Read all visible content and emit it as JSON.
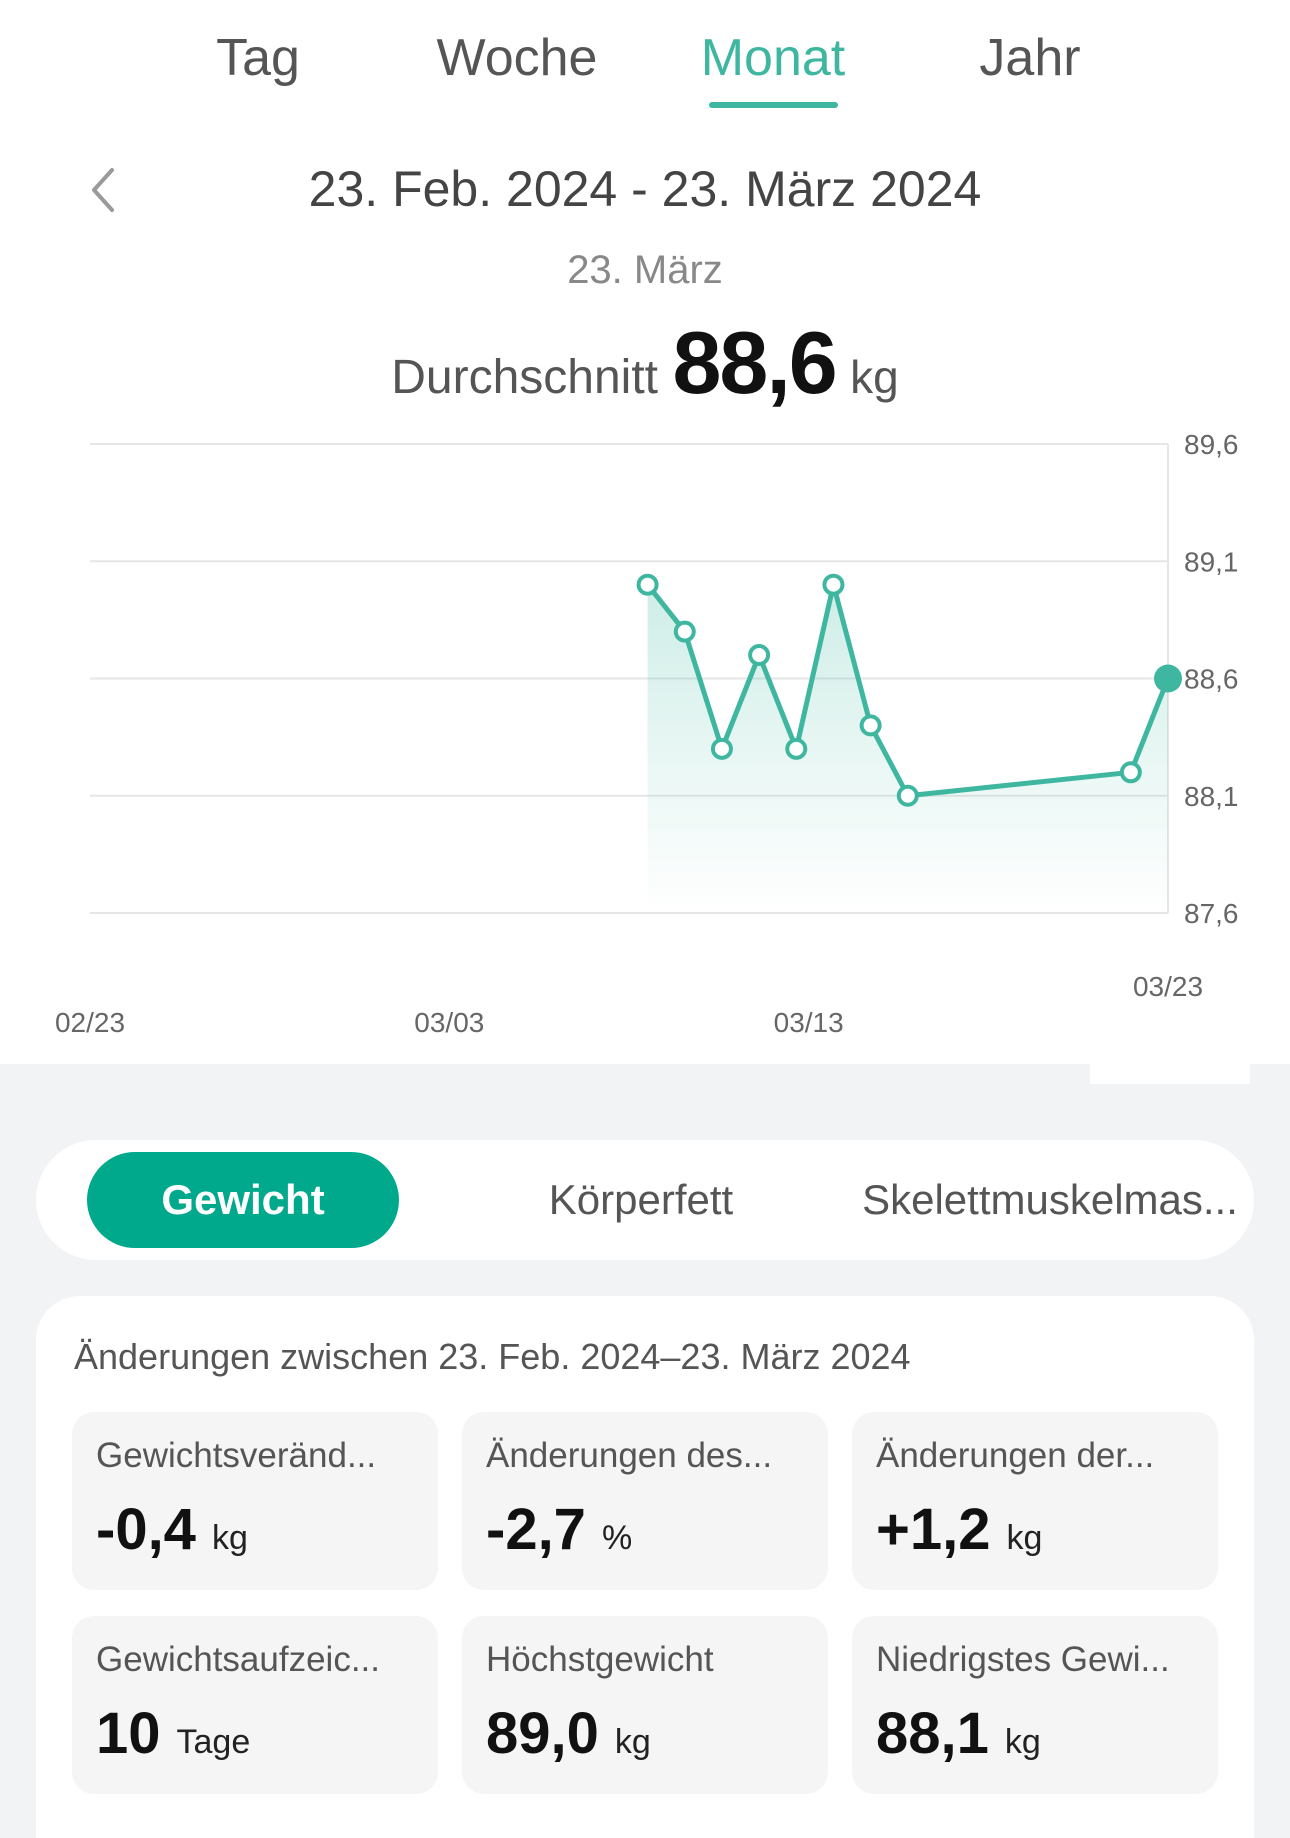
{
  "tabs": [
    {
      "label": "Tag"
    },
    {
      "label": "Woche"
    },
    {
      "label": "Monat"
    },
    {
      "label": "Jahr"
    }
  ],
  "active_tab": "Monat",
  "header": {
    "range": "23. Feb. 2024 - 23. März 2024",
    "selected_date": "23. März",
    "avg_label": "Durchschnitt",
    "avg_value": "88,6",
    "avg_unit": "kg"
  },
  "colors": {
    "accent": "#3fb7a0",
    "accent_button": "#00a98b",
    "background_panel": "#f2f3f5"
  },
  "chart_data": {
    "type": "line",
    "x_ticks": [
      "02/23",
      "03/03",
      "03/13",
      "03/23"
    ],
    "y_ticks": [
      "89,6",
      "89,1",
      "88,6",
      "88,1",
      "87,6"
    ],
    "ylim": [
      87.6,
      89.6
    ],
    "x_range_days": [
      0,
      29
    ],
    "grid": true,
    "series": [
      {
        "x_day_offset": [
          15,
          16,
          17,
          18,
          19,
          20,
          21,
          22,
          28,
          29
        ],
        "values": [
          89.0,
          88.8,
          88.3,
          88.7,
          88.3,
          89.0,
          88.4,
          88.1,
          88.2,
          88.6
        ]
      }
    ],
    "selected_index": 9
  },
  "metric_tabs": [
    {
      "label": "Gewicht"
    },
    {
      "label": "Körperfett"
    },
    {
      "label": "Skelettmuskelmas..."
    }
  ],
  "changes": {
    "title": "Änderungen zwischen 23. Feb. 2024–23. März 2024",
    "stats": [
      {
        "label": "Gewichtsveränd...",
        "value": "-0,4",
        "unit": "kg"
      },
      {
        "label": "Änderungen des...",
        "value": "-2,7",
        "unit": "%"
      },
      {
        "label": "Änderungen der...",
        "value": "+1,2",
        "unit": "kg"
      },
      {
        "label": "Gewichtsaufzeic...",
        "value": "10",
        "unit": "Tage"
      },
      {
        "label": "Höchstgewicht",
        "value": "89,0",
        "unit": "kg"
      },
      {
        "label": "Niedrigstes Gewi...",
        "value": "88,1",
        "unit": "kg"
      }
    ]
  }
}
